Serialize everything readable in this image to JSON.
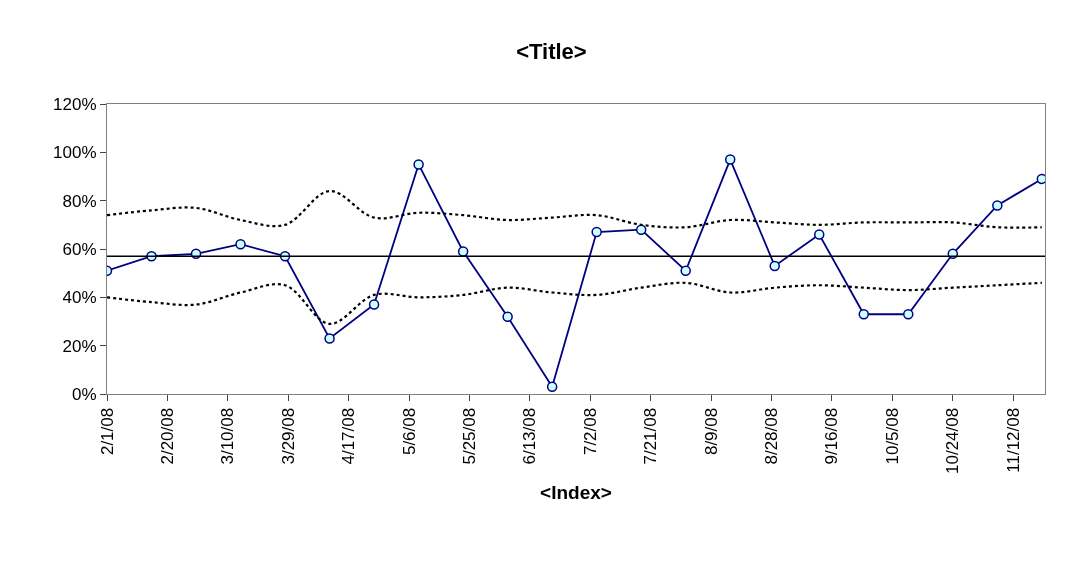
{
  "chart_data": {
    "type": "line",
    "title": "<Title>",
    "xlabel": "<Index>",
    "x": [
      "2008-02-01",
      "2008-02-15",
      "2008-02-29",
      "2008-03-14",
      "2008-03-28",
      "2008-04-11",
      "2008-04-25",
      "2008-05-09",
      "2008-05-23",
      "2008-06-06",
      "2008-06-20",
      "2008-07-04",
      "2008-07-18",
      "2008-08-01",
      "2008-08-15",
      "2008-08-29",
      "2008-09-12",
      "2008-09-26",
      "2008-10-10",
      "2008-10-24",
      "2008-11-07",
      "2008-11-21"
    ],
    "series": [
      {
        "color": "#000080",
        "marker": "circle",
        "line_style": "solid",
        "values": [
          51,
          57,
          58,
          62,
          57,
          23,
          37,
          95,
          59,
          32,
          3,
          67,
          68,
          51,
          97,
          53,
          66,
          33,
          33,
          58,
          78,
          89
        ]
      },
      {
        "color": "#000000",
        "marker": "none",
        "line_style": "dotted",
        "values": [
          74,
          76,
          77,
          72,
          70,
          84,
          73,
          75,
          74,
          72,
          73,
          74,
          70,
          69,
          72,
          71,
          70,
          71,
          71,
          71,
          69,
          69
        ]
      },
      {
        "color": "#000000",
        "marker": "none",
        "line_style": "dotted",
        "values": [
          40,
          38,
          37,
          42,
          45,
          29,
          41,
          40,
          41,
          44,
          42,
          41,
          44,
          46,
          42,
          44,
          45,
          44,
          43,
          44,
          45,
          46
        ]
      }
    ],
    "ref_lines": [
      {
        "axis": "y",
        "value": 57,
        "color": "#000000",
        "line_style": "solid"
      }
    ],
    "xlim": [
      "2008-02-01",
      "2008-11-22"
    ],
    "xticks": [
      {
        "value": "2008-02-01",
        "label": "2/1/08"
      },
      {
        "value": "2008-02-20",
        "label": "2/20/08"
      },
      {
        "value": "2008-03-10",
        "label": "3/10/08"
      },
      {
        "value": "2008-03-29",
        "label": "3/29/08"
      },
      {
        "value": "2008-04-17",
        "label": "4/17/08"
      },
      {
        "value": "2008-05-06",
        "label": "5/6/08"
      },
      {
        "value": "2008-05-25",
        "label": "5/25/08"
      },
      {
        "value": "2008-06-13",
        "label": "6/13/08"
      },
      {
        "value": "2008-07-02",
        "label": "7/2/08"
      },
      {
        "value": "2008-07-21",
        "label": "7/21/08"
      },
      {
        "value": "2008-08-09",
        "label": "8/9/08"
      },
      {
        "value": "2008-08-28",
        "label": "8/28/08"
      },
      {
        "value": "2008-09-16",
        "label": "9/16/08"
      },
      {
        "value": "2008-10-05",
        "label": "10/5/08"
      },
      {
        "value": "2008-10-24",
        "label": "10/24/08"
      },
      {
        "value": "2008-11-12",
        "label": "11/12/08"
      }
    ],
    "ylim": [
      0,
      120
    ],
    "yticks": [
      {
        "value": 0,
        "label": "0%"
      },
      {
        "value": 20,
        "label": "20%"
      },
      {
        "value": 40,
        "label": "40%"
      },
      {
        "value": 60,
        "label": "60%"
      },
      {
        "value": 80,
        "label": "80%"
      },
      {
        "value": 100,
        "label": "100%"
      },
      {
        "value": 120,
        "label": "120%"
      }
    ],
    "grid": false
  }
}
